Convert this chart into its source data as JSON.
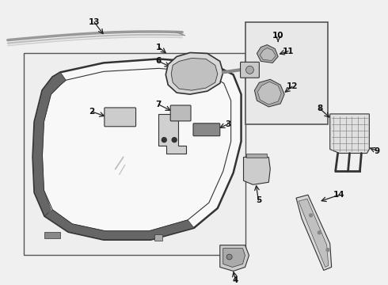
{
  "bg_color": "#f0f0f0",
  "line_color": "#333333",
  "light_gray": "#bbbbbb",
  "mid_gray": "#888888",
  "dark_gray": "#555555",
  "white": "#ffffff",
  "box_bg": "#e8e8e8",
  "fig_w": 4.9,
  "fig_h": 3.6,
  "dpi": 100
}
